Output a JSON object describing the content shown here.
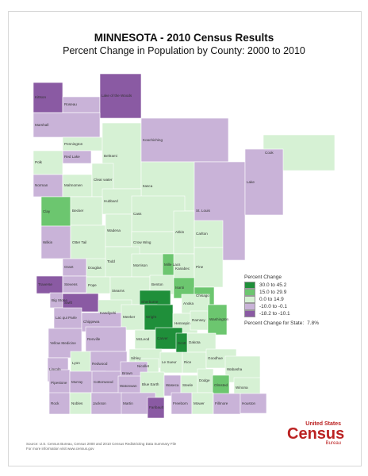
{
  "title": "MINNESOTA - 2010 Census Results",
  "subtitle": "Percent Change in Population by County:  2000 to 2010",
  "legend": {
    "title": "Percent Change",
    "items": [
      {
        "label": "30.0 to 45.2",
        "color": "#1f8f3a"
      },
      {
        "label": "15.0 to 29.9",
        "color": "#6cc66f"
      },
      {
        "label": "0.0 to 14.9",
        "color": "#d6f1d4"
      },
      {
        "label": "-10.0 to -0.1",
        "color": "#c9b3d8"
      },
      {
        "label": "-18.2 to -10.1",
        "color": "#8a5aa3"
      }
    ],
    "state_label": "Percent Change for State:",
    "state_value": "7.8%"
  },
  "counties": [
    {
      "name": "Kittson",
      "cls": 4
    },
    {
      "name": "Roseau",
      "cls": 3
    },
    {
      "name": "Lake of the Woods",
      "cls": 4
    },
    {
      "name": "Marshall",
      "cls": 3
    },
    {
      "name": "Pennington",
      "cls": 2
    },
    {
      "name": "Red Lake",
      "cls": 3
    },
    {
      "name": "Polk",
      "cls": 2
    },
    {
      "name": "Beltrami",
      "cls": 2
    },
    {
      "name": "Koochiching",
      "cls": 3
    },
    {
      "name": "Cook",
      "cls": 2
    },
    {
      "name": "Norman",
      "cls": 3
    },
    {
      "name": "Mahnomen",
      "cls": 2
    },
    {
      "name": "Clear water",
      "cls": 2
    },
    {
      "name": "Itasca",
      "cls": 2
    },
    {
      "name": "St. Louis",
      "cls": 3
    },
    {
      "name": "Lake",
      "cls": 3
    },
    {
      "name": "Hubbard",
      "cls": 2
    },
    {
      "name": "Clay",
      "cls": 1
    },
    {
      "name": "Becker",
      "cls": 2
    },
    {
      "name": "Cass",
      "cls": 2
    },
    {
      "name": "Wilkin",
      "cls": 3
    },
    {
      "name": "Otter Tail",
      "cls": 2
    },
    {
      "name": "Wadena",
      "cls": 2
    },
    {
      "name": "Crow Wing",
      "cls": 2
    },
    {
      "name": "Aitkin",
      "cls": 2
    },
    {
      "name": "Carlton",
      "cls": 2
    },
    {
      "name": "Grant",
      "cls": 3
    },
    {
      "name": "Douglas",
      "cls": 2
    },
    {
      "name": "Todd",
      "cls": 2
    },
    {
      "name": "Morrison",
      "cls": 2
    },
    {
      "name": "Mille Lacs",
      "cls": 1
    },
    {
      "name": "Kanabec",
      "cls": 2
    },
    {
      "name": "Pine",
      "cls": 2
    },
    {
      "name": "Traverse",
      "cls": 4
    },
    {
      "name": "Stevens",
      "cls": 3
    },
    {
      "name": "Pope",
      "cls": 2
    },
    {
      "name": "Big Stone",
      "cls": 3
    },
    {
      "name": "Stearns",
      "cls": 2
    },
    {
      "name": "Benton",
      "cls": 2
    },
    {
      "name": "Isanti",
      "cls": 1
    },
    {
      "name": "Chisago",
      "cls": 1
    },
    {
      "name": "Swift",
      "cls": 4
    },
    {
      "name": "Kandiyohi",
      "cls": 2
    },
    {
      "name": "Sherburne",
      "cls": 0
    },
    {
      "name": "Anoka",
      "cls": 2
    },
    {
      "name": "Lac qui Parle",
      "cls": 3
    },
    {
      "name": "Chippewa",
      "cls": 3
    },
    {
      "name": "Meeker",
      "cls": 2
    },
    {
      "name": "Wright",
      "cls": 0
    },
    {
      "name": "Hennepin",
      "cls": 2
    },
    {
      "name": "Ramsey",
      "cls": 2
    },
    {
      "name": "Washington",
      "cls": 1
    },
    {
      "name": "Yellow Medicine",
      "cls": 3
    },
    {
      "name": "Renville",
      "cls": 3
    },
    {
      "name": "McLeod",
      "cls": 2
    },
    {
      "name": "Carver",
      "cls": 0
    },
    {
      "name": "Scott",
      "cls": 0
    },
    {
      "name": "Dakota",
      "cls": 2
    },
    {
      "name": "Lincoln",
      "cls": 3
    },
    {
      "name": "Lyon",
      "cls": 2
    },
    {
      "name": "Redwood",
      "cls": 3
    },
    {
      "name": "Sibley",
      "cls": 2
    },
    {
      "name": "Nicollet",
      "cls": 2
    },
    {
      "name": "Le Sueur",
      "cls": 2
    },
    {
      "name": "Rice",
      "cls": 2
    },
    {
      "name": "Goodhue",
      "cls": 2
    },
    {
      "name": "Wabasha",
      "cls": 2
    },
    {
      "name": "Pipestone",
      "cls": 3
    },
    {
      "name": "Murray",
      "cls": 3
    },
    {
      "name": "Cottonwood",
      "cls": 3
    },
    {
      "name": "Brown",
      "cls": 3
    },
    {
      "name": "Watonwan",
      "cls": 3
    },
    {
      "name": "Blue Earth",
      "cls": 2
    },
    {
      "name": "Waseca",
      "cls": 3
    },
    {
      "name": "Steele",
      "cls": 2
    },
    {
      "name": "Dodge",
      "cls": 2
    },
    {
      "name": "Olmsted",
      "cls": 1
    },
    {
      "name": "Winona",
      "cls": 2
    },
    {
      "name": "Rock",
      "cls": 3
    },
    {
      "name": "Nobles",
      "cls": 2
    },
    {
      "name": "Jackson",
      "cls": 3
    },
    {
      "name": "Martin",
      "cls": 3
    },
    {
      "name": "Faribault",
      "cls": 4
    },
    {
      "name": "Freeborn",
      "cls": 3
    },
    {
      "name": "Mower",
      "cls": 2
    },
    {
      "name": "Fillmore",
      "cls": 3
    },
    {
      "name": "Houston",
      "cls": 3
    }
  ],
  "source": {
    "line1": "Source:  U.S. Census Bureau, Census 2000 and 2010 Census Redistricting Data Summary File",
    "line2": "For more information visit www.census.gov"
  },
  "logo": {
    "top": "United States",
    "big": "Census",
    "bottom": "Bureau"
  }
}
